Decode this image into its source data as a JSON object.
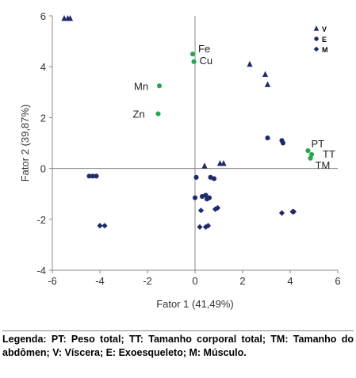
{
  "chart_data": {
    "type": "scatter",
    "xlabel": "Fator 1 (41,49%)",
    "ylabel": "Fator  2 (39,87%)",
    "xlim": [
      -6,
      6
    ],
    "ylim": [
      -4,
      6
    ],
    "xticks": [
      -6,
      -4,
      -2,
      0,
      2,
      4,
      6
    ],
    "yticks": [
      -4,
      -2,
      0,
      2,
      4,
      6
    ],
    "grid": false,
    "legend_position": "top-right",
    "series": [
      {
        "name": "V",
        "marker": "triangle",
        "color": "#1f2a6b",
        "points": [
          [
            -5.5,
            5.9
          ],
          [
            -5.35,
            5.9
          ],
          [
            -5.25,
            5.9
          ],
          [
            2.3,
            4.1
          ],
          [
            2.95,
            3.7
          ],
          [
            3.05,
            3.3
          ],
          [
            0.4,
            0.1
          ],
          [
            1.05,
            0.2
          ],
          [
            1.2,
            0.2
          ]
        ]
      },
      {
        "name": "E",
        "marker": "circle",
        "color": "#1f2a6b",
        "points": [
          [
            -4.45,
            -0.3
          ],
          [
            -4.3,
            -0.3
          ],
          [
            -4.15,
            -0.3
          ],
          [
            3.05,
            1.2
          ],
          [
            3.65,
            1.1
          ],
          [
            3.7,
            1.0
          ],
          [
            0.05,
            -0.35
          ],
          [
            0.65,
            -0.35
          ],
          [
            0.8,
            -0.4
          ],
          [
            0.0,
            -1.15
          ],
          [
            0.3,
            -1.1
          ],
          [
            0.45,
            -1.05
          ],
          [
            0.6,
            -1.15
          ],
          [
            0.5,
            -1.2
          ]
        ]
      },
      {
        "name": "M",
        "marker": "diamond",
        "color": "#1f2a6b",
        "points": [
          [
            -4.0,
            -2.25
          ],
          [
            -3.8,
            -2.25
          ],
          [
            0.2,
            -2.3
          ],
          [
            0.45,
            -2.3
          ],
          [
            0.55,
            -2.25
          ],
          [
            0.25,
            -1.65
          ],
          [
            0.85,
            -1.6
          ],
          [
            0.95,
            -1.55
          ],
          [
            3.65,
            -1.75
          ],
          [
            4.1,
            -1.7
          ],
          [
            4.15,
            -1.7
          ]
        ]
      },
      {
        "name": "",
        "marker": "circle",
        "color": "#22a84a",
        "points": [
          {
            "x": -1.5,
            "y": 3.25,
            "label": "Mn"
          },
          {
            "x": -1.55,
            "y": 2.15,
            "label": "Zn"
          },
          {
            "x": -0.1,
            "y": 4.5,
            "label": "Fe"
          },
          {
            "x": -0.05,
            "y": 4.2,
            "label": "Cu"
          },
          {
            "x": 4.75,
            "y": 0.7,
            "label": "PT"
          },
          {
            "x": 4.9,
            "y": 0.55,
            "label": "TT"
          },
          {
            "x": 4.85,
            "y": 0.4,
            "label": "TM"
          }
        ]
      }
    ]
  },
  "legend": [
    {
      "label": "V",
      "marker": "triangle"
    },
    {
      "label": "E",
      "marker": "circle"
    },
    {
      "label": "M",
      "marker": "diamond"
    }
  ],
  "caption": "Legenda: PT: Peso total; TT: Tamanho corporal total; TM: Tamanho do abdômen; V: Víscera; E: Exoesqueleto; M: Músculo."
}
